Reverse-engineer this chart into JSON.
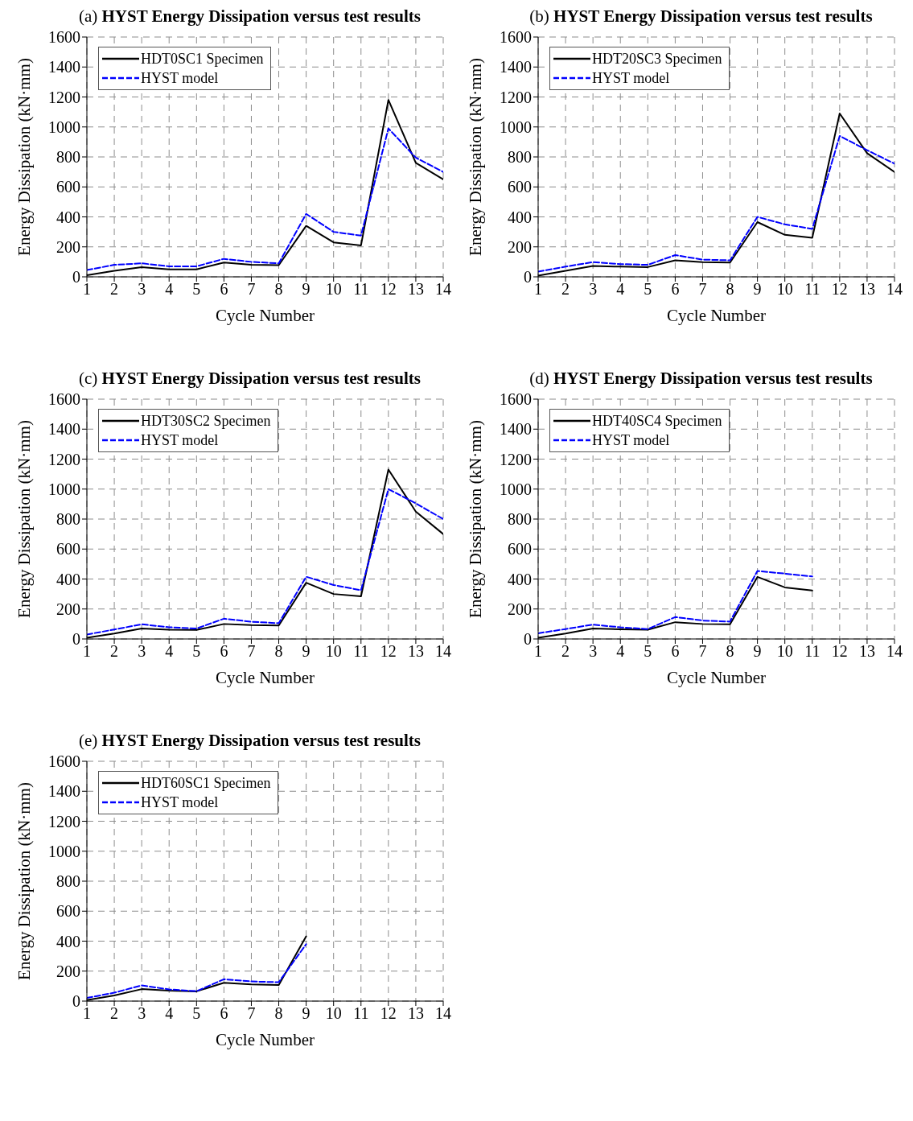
{
  "chart_data": [
    {
      "type": "line",
      "title": "(a) HYST Energy Dissipation versus test results",
      "xlabel": "Cycle Number",
      "ylabel": "Energy Dissipation (kN·mm)",
      "x": [
        1,
        2,
        3,
        4,
        5,
        6,
        7,
        8,
        9,
        10,
        11,
        12,
        13,
        14
      ],
      "xlim": [
        1,
        14
      ],
      "xticks": [
        1,
        2,
        3,
        4,
        5,
        6,
        7,
        8,
        9,
        10,
        11,
        12,
        13,
        14
      ],
      "ylim": [
        0,
        1600
      ],
      "yticks": [
        0,
        200,
        400,
        600,
        800,
        1000,
        1200,
        1400,
        1600
      ],
      "grid": true,
      "legend": "top left",
      "series": [
        {
          "name": "HDT0SC1 Specimen",
          "color": "#000000",
          "line_style": "solid",
          "values": [
            10,
            40,
            65,
            50,
            50,
            95,
            80,
            78,
            340,
            230,
            210,
            1180,
            760,
            650
          ]
        },
        {
          "name": "HYST model",
          "color": "#0000ff",
          "line_style": "dashed",
          "values": [
            45,
            80,
            90,
            70,
            70,
            120,
            100,
            90,
            420,
            300,
            275,
            990,
            795,
            700
          ]
        }
      ]
    },
    {
      "type": "line",
      "title": "(b) HYST Energy Dissipation versus test results",
      "xlabel": "Cycle Number",
      "ylabel": "Energy Dissipation (kN·mm)",
      "x": [
        1,
        2,
        3,
        4,
        5,
        6,
        7,
        8,
        9,
        10,
        11,
        12,
        13,
        14
      ],
      "xlim": [
        1,
        14
      ],
      "xticks": [
        1,
        2,
        3,
        4,
        5,
        6,
        7,
        8,
        9,
        10,
        11,
        12,
        13,
        14
      ],
      "ylim": [
        0,
        1600
      ],
      "yticks": [
        0,
        200,
        400,
        600,
        800,
        1000,
        1200,
        1400,
        1600
      ],
      "grid": true,
      "legend": "top left",
      "series": [
        {
          "name": "HDT20SC3 Specimen",
          "color": "#000000",
          "line_style": "solid",
          "values": [
            8,
            40,
            72,
            68,
            65,
            110,
            98,
            95,
            365,
            280,
            260,
            1090,
            825,
            700
          ]
        },
        {
          "name": "HYST model",
          "color": "#0000ff",
          "line_style": "dashed",
          "values": [
            35,
            68,
            98,
            85,
            80,
            145,
            115,
            110,
            400,
            350,
            320,
            940,
            845,
            755
          ]
        }
      ]
    },
    {
      "type": "line",
      "title": "(c) HYST Energy Dissipation versus test results",
      "xlabel": "Cycle Number",
      "ylabel": "Energy Dissipation (kN·mm)",
      "x": [
        1,
        2,
        3,
        4,
        5,
        6,
        7,
        8,
        9,
        10,
        11,
        12,
        13,
        14
      ],
      "xlim": [
        1,
        14
      ],
      "xticks": [
        1,
        2,
        3,
        4,
        5,
        6,
        7,
        8,
        9,
        10,
        11,
        12,
        13,
        14
      ],
      "ylim": [
        0,
        1600
      ],
      "yticks": [
        0,
        200,
        400,
        600,
        800,
        1000,
        1200,
        1400,
        1600
      ],
      "grid": true,
      "legend": "top left",
      "series": [
        {
          "name": "HDT30SC2 Specimen",
          "color": "#000000",
          "line_style": "solid",
          "values": [
            8,
            36,
            70,
            62,
            60,
            100,
            92,
            90,
            375,
            300,
            285,
            1130,
            850,
            700
          ]
        },
        {
          "name": "HYST model",
          "color": "#0000ff",
          "line_style": "dashed",
          "values": [
            30,
            63,
            98,
            78,
            70,
            135,
            115,
            105,
            415,
            360,
            325,
            1000,
            905,
            800
          ]
        }
      ]
    },
    {
      "type": "line",
      "title": "(d) HYST Energy Dissipation versus test results",
      "xlabel": "Cycle Number",
      "ylabel": "Energy Dissipation (kN·mm)",
      "x": [
        1,
        2,
        3,
        4,
        5,
        6,
        7,
        8,
        9,
        10,
        11
      ],
      "xlim": [
        1,
        14
      ],
      "xticks": [
        1,
        2,
        3,
        4,
        5,
        6,
        7,
        8,
        9,
        10,
        11,
        12,
        13,
        14
      ],
      "ylim": [
        0,
        1600
      ],
      "yticks": [
        0,
        200,
        400,
        600,
        800,
        1000,
        1200,
        1400,
        1600
      ],
      "grid": true,
      "legend": "top left",
      "series": [
        {
          "name": "HDT40SC4 Specimen",
          "color": "#000000",
          "line_style": "solid",
          "values": [
            8,
            36,
            70,
            65,
            62,
            112,
            100,
            98,
            414,
            344,
            323
          ]
        },
        {
          "name": "HYST model",
          "color": "#0000ff",
          "line_style": "dashed",
          "values": [
            38,
            66,
            96,
            78,
            66,
            146,
            123,
            116,
            454,
            436,
            417
          ]
        }
      ]
    },
    {
      "type": "line",
      "title": "(e) HYST Energy Dissipation versus test results",
      "xlabel": "Cycle Number",
      "ylabel": "Energy Dissipation (kN·mm)",
      "x": [
        1,
        2,
        3,
        4,
        5,
        6,
        7,
        8,
        9
      ],
      "xlim": [
        1,
        14
      ],
      "xticks": [
        1,
        2,
        3,
        4,
        5,
        6,
        7,
        8,
        9,
        10,
        11,
        12,
        13,
        14
      ],
      "ylim": [
        0,
        1600
      ],
      "yticks": [
        0,
        200,
        400,
        600,
        800,
        1000,
        1200,
        1400,
        1600
      ],
      "grid": true,
      "legend": "top left",
      "series": [
        {
          "name": "HDT60SC1 Specimen",
          "color": "#000000",
          "line_style": "solid",
          "values": [
            6,
            38,
            80,
            70,
            65,
            122,
            112,
            108,
            432
          ]
        },
        {
          "name": "HYST model",
          "color": "#0000ff",
          "line_style": "dashed",
          "values": [
            21,
            56,
            105,
            78,
            66,
            146,
            131,
            126,
            380
          ]
        }
      ]
    }
  ]
}
